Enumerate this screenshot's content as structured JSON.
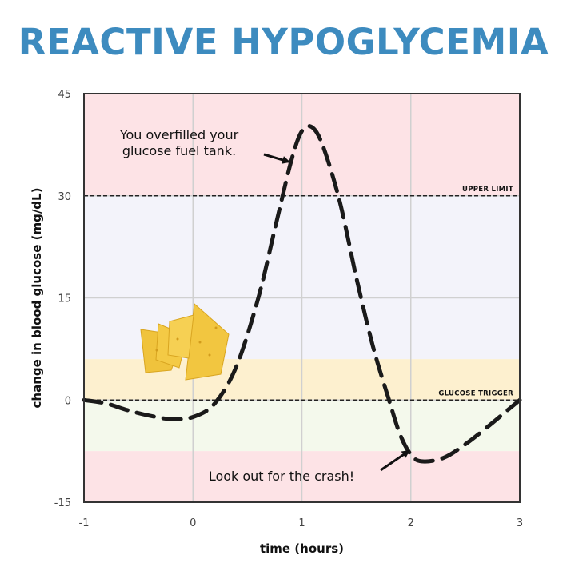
{
  "chart_data": {
    "type": "line",
    "title": "REACTIVE HYPOGLYCEMIA",
    "xlabel": "time (hours)",
    "ylabel": "change in blood glucose (mg/dL)",
    "xlim": [
      -1,
      3
    ],
    "ylim": [
      -15,
      45
    ],
    "x_ticks": [
      "-1",
      "0",
      "1",
      "2",
      "3"
    ],
    "y_ticks": [
      "-15",
      "0",
      "15",
      "30",
      "45"
    ],
    "grid": true,
    "series": [
      {
        "color": "#1a1a1a",
        "style": "dashed",
        "x": [
          -1,
          -0.8,
          -0.6,
          -0.4,
          -0.2,
          0,
          0.2,
          0.4,
          0.6,
          0.75,
          0.9,
          1.0,
          1.1,
          1.2,
          1.35,
          1.5,
          1.65,
          1.8,
          1.9,
          2.0,
          2.1,
          2.3,
          2.5,
          2.7,
          2.85,
          3.0
        ],
        "y": [
          0,
          -0.5,
          -1.5,
          -2.3,
          -2.8,
          -2.5,
          -0.5,
          5,
          15,
          25,
          35,
          39.5,
          40,
          37,
          29,
          18,
          8,
          0,
          -5,
          -8,
          -9,
          -8.5,
          -6.5,
          -4,
          -2,
          0
        ]
      }
    ],
    "bands": [
      {
        "from": 30,
        "to": 45,
        "color": "#fde3e6"
      },
      {
        "from": 6,
        "to": 30,
        "color": "#f3f3fa"
      },
      {
        "from": 0,
        "to": 6,
        "color": "#fdf0cf"
      },
      {
        "from": -7.5,
        "to": 0,
        "color": "#f4f9ec"
      },
      {
        "from": -15,
        "to": -7.5,
        "color": "#fde3e6"
      }
    ],
    "reference_lines": [
      {
        "y": 30,
        "label": "UPPER LIMIT"
      },
      {
        "y": 0,
        "label": "GLUCOSE TRIGGER"
      }
    ],
    "annotations": [
      {
        "text_lines": [
          "You overfilled your",
          "glucose fuel tank."
        ],
        "arrow_to": [
          0.88,
          35
        ]
      },
      {
        "text_lines": [
          "Look out for the crash!"
        ],
        "arrow_to": [
          1.98,
          -7.5
        ]
      }
    ],
    "colors": {
      "title": "#3d8bbf",
      "line": "#1a1a1a",
      "grid": "#d0d0d0",
      "frame": "#333333",
      "chip": "#f0c33c"
    }
  }
}
